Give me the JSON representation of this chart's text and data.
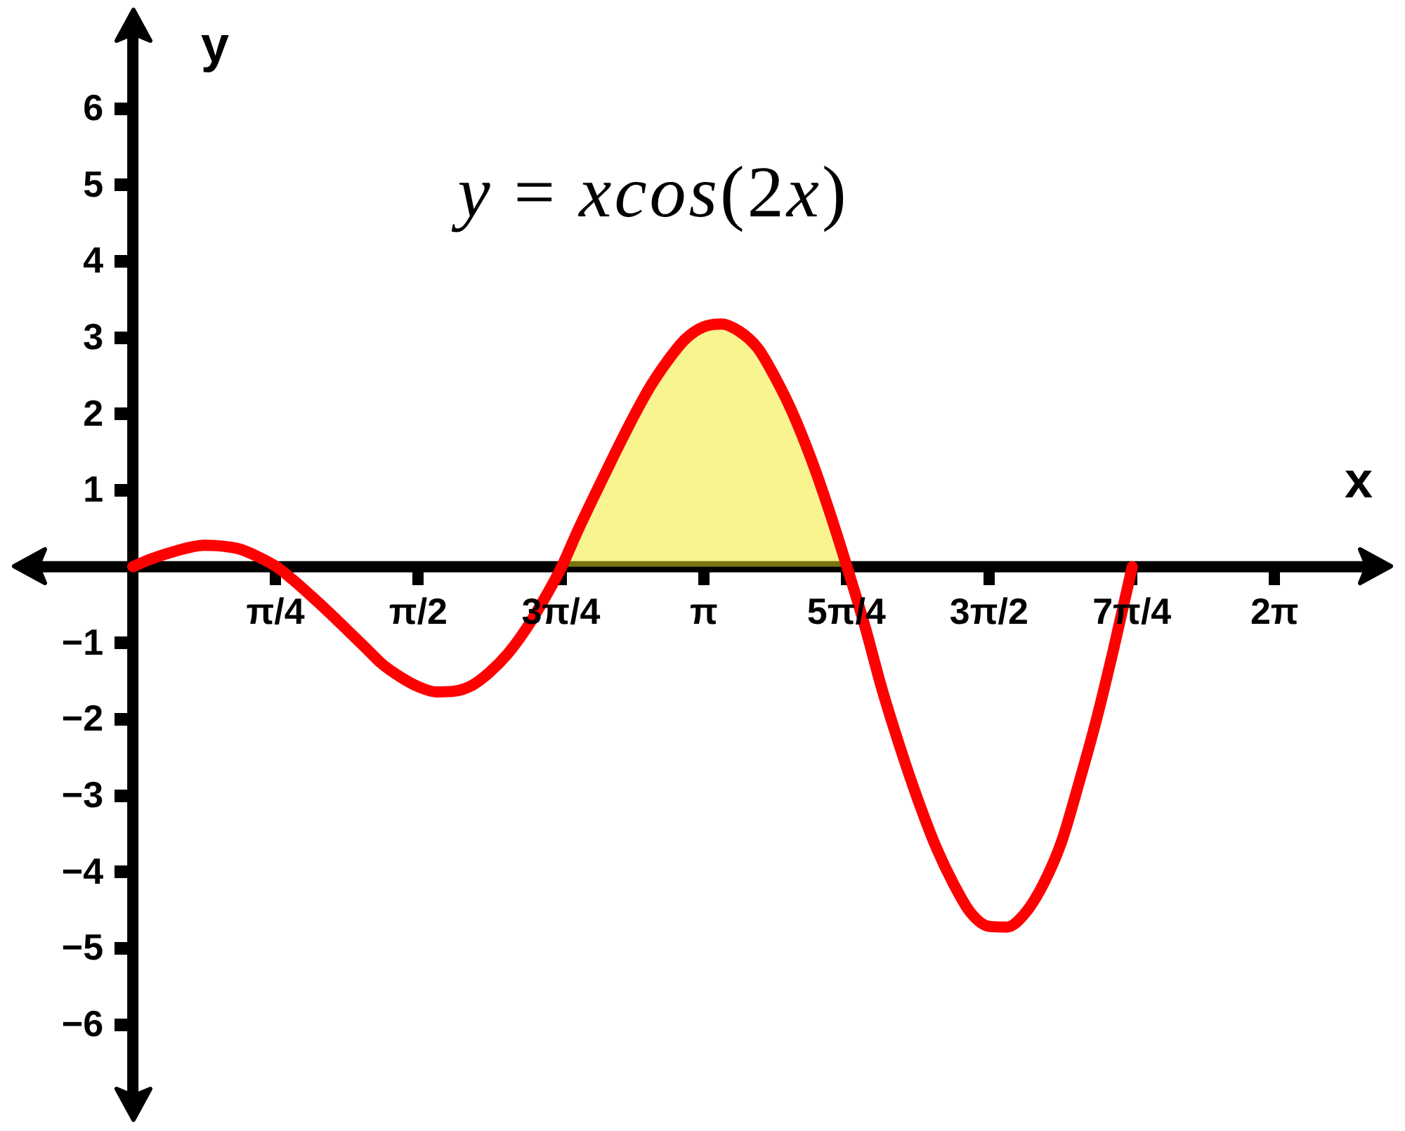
{
  "chart_data": {
    "type": "line",
    "title": "y = xcos(2x)",
    "xlabel": "x",
    "ylabel": "y",
    "xlim": [
      -0.53,
      6.8
    ],
    "ylim": [
      -6.95,
      7.0
    ],
    "xticks": [
      {
        "value": 0.785,
        "label": "π/4"
      },
      {
        "value": 1.571,
        "label": "π/2"
      },
      {
        "value": 2.356,
        "label": "3π/4"
      },
      {
        "value": 3.142,
        "label": "π"
      },
      {
        "value": 3.927,
        "label": "5π/4"
      },
      {
        "value": 4.712,
        "label": "3π/2"
      },
      {
        "value": 5.498,
        "label": "7π/4"
      },
      {
        "value": 6.283,
        "label": "2π"
      }
    ],
    "yticks": [
      {
        "value": -6,
        "label": "−6"
      },
      {
        "value": -5,
        "label": "−5"
      },
      {
        "value": -4,
        "label": "−4"
      },
      {
        "value": -3,
        "label": "−3"
      },
      {
        "value": -2,
        "label": "−2"
      },
      {
        "value": -1,
        "label": "−1"
      },
      1,
      2,
      3,
      4,
      5,
      6
    ],
    "marker": "none",
    "series": [
      {
        "type": "line",
        "color": "#ff0000",
        "x": [
          0,
          0.1,
          0.2,
          0.29,
          0.39,
          0.49,
          0.59,
          0.69,
          0.79,
          0.88,
          0.98,
          1.08,
          1.18,
          1.28,
          1.37,
          1.47,
          1.57,
          1.67,
          1.77,
          1.87,
          1.96,
          2.06,
          2.16,
          2.26,
          2.36,
          2.45,
          2.55,
          2.65,
          2.75,
          2.85,
          2.95,
          3.04,
          3.14,
          3.24,
          3.34,
          3.44,
          3.53,
          3.63,
          3.73,
          3.83,
          3.93,
          4.03,
          4.12,
          4.22,
          4.32,
          4.42,
          4.52,
          4.61,
          4.71,
          4.81,
          4.91,
          5.01,
          5.11,
          5.2,
          5.3,
          5.4,
          5.5
        ],
        "values": [
          0,
          0.1,
          0.18,
          0.24,
          0.28,
          0.27,
          0.23,
          0.13,
          0,
          -0.17,
          -0.38,
          -0.6,
          -0.83,
          -1.06,
          -1.27,
          -1.44,
          -1.57,
          -1.64,
          -1.63,
          -1.55,
          -1.39,
          -1.15,
          -0.83,
          -0.44,
          0,
          0.48,
          0.98,
          1.47,
          1.94,
          2.37,
          2.72,
          2.98,
          3.14,
          3.18,
          3.08,
          2.86,
          2.5,
          2.02,
          1.43,
          0.75,
          0,
          -0.79,
          -1.58,
          -2.35,
          -3.05,
          -3.67,
          -4.17,
          -4.53,
          -4.71,
          -4.72,
          -4.54,
          -4.16,
          -3.61,
          -2.89,
          -2.03,
          -1.05,
          0
        ]
      },
      {
        "type": "area",
        "color": "#f8f48f",
        "x": [
          2.36,
          2.45,
          2.55,
          2.65,
          2.75,
          2.85,
          2.95,
          3.04,
          3.14,
          3.24,
          3.34,
          3.44,
          3.53,
          3.63,
          3.73,
          3.83,
          3.93
        ],
        "values": [
          0,
          0.48,
          0.98,
          1.47,
          1.94,
          2.37,
          2.72,
          2.98,
          3.14,
          3.18,
          3.08,
          2.86,
          2.5,
          2.02,
          1.43,
          0.75,
          0
        ]
      }
    ]
  }
}
